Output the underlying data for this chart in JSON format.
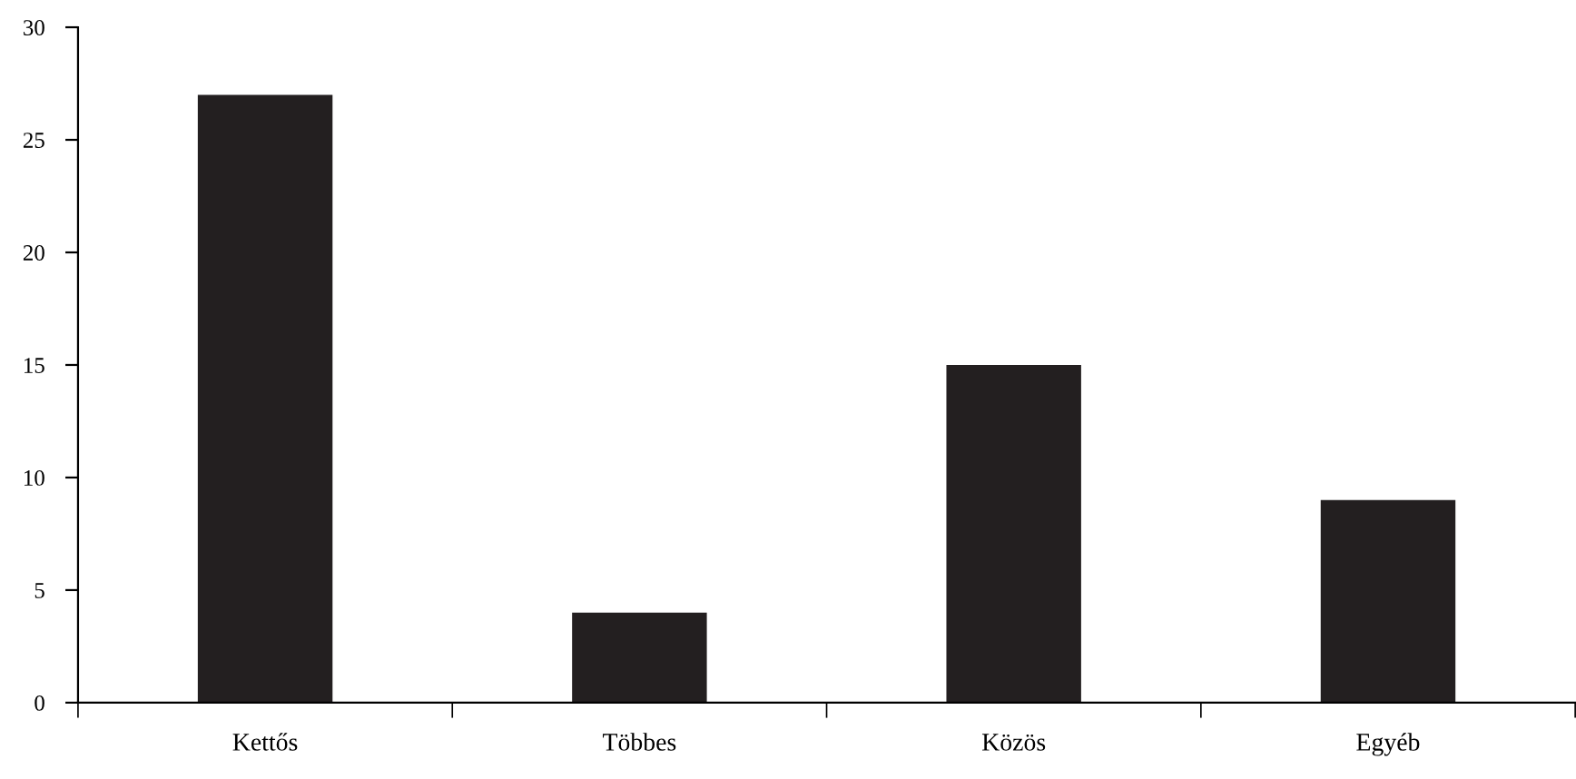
{
  "chart_data": {
    "type": "bar",
    "categories": [
      "Kettős",
      "Többes",
      "Közös",
      "Egyéb"
    ],
    "values": [
      27,
      4,
      15,
      9
    ],
    "color": "#231f20",
    "ylim": [
      0,
      30
    ],
    "yticks": [
      0,
      5,
      10,
      15,
      20,
      25,
      30
    ],
    "grid": false,
    "legend": false
  }
}
